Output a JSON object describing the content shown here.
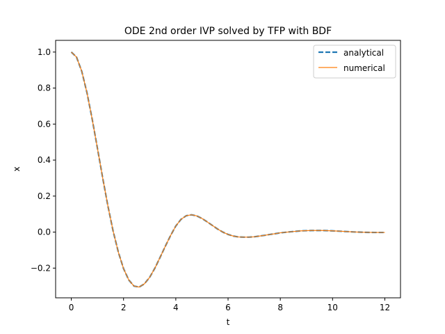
{
  "chart_data": {
    "type": "line",
    "title": "ODE 2nd order IVP solved by TFP with BDF",
    "xlabel": "t",
    "ylabel": "x",
    "xlim": [
      -0.6,
      12.6
    ],
    "ylim": [
      -0.365,
      1.065
    ],
    "xticks": [
      0,
      2,
      4,
      6,
      8,
      10,
      12
    ],
    "yticks": [
      -0.2,
      0.0,
      0.2,
      0.4,
      0.6,
      0.8,
      1.0
    ],
    "xtick_labels": [
      "0",
      "2",
      "4",
      "6",
      "8",
      "10",
      "12"
    ],
    "ytick_labels": [
      "−0.2",
      "0.0",
      "0.2",
      "0.4",
      "0.6",
      "0.8",
      "1.0"
    ],
    "grid": false,
    "legend_position": "top-right",
    "x": [
      0,
      0.2,
      0.4,
      0.6,
      0.8,
      1.0,
      1.2,
      1.4,
      1.6,
      1.8,
      2.0,
      2.2,
      2.4,
      2.6,
      2.8,
      3.0,
      3.2,
      3.4,
      3.6,
      3.8,
      4.0,
      4.2,
      4.4,
      4.6,
      4.8,
      5.0,
      5.2,
      5.4,
      5.6,
      5.8,
      6.0,
      6.2,
      6.4,
      6.6,
      6.8,
      7.0,
      7.2,
      7.4,
      7.6,
      7.8,
      8.0,
      8.4,
      8.8,
      9.2,
      9.6,
      10.0,
      10.4,
      10.8,
      11.2,
      11.6,
      12.0
    ],
    "series": [
      {
        "name": "analytical",
        "color": "#1f77b4",
        "style": "dashed",
        "values": [
          1.0,
          0.972,
          0.893,
          0.774,
          0.627,
          0.466,
          0.302,
          0.146,
          0.006,
          -0.111,
          -0.203,
          -0.266,
          -0.3,
          -0.305,
          -0.287,
          -0.251,
          -0.2,
          -0.14,
          -0.078,
          -0.019,
          0.034,
          0.071,
          0.091,
          0.096,
          0.09,
          0.076,
          0.057,
          0.037,
          0.017,
          0.0,
          -0.013,
          -0.022,
          -0.027,
          -0.028,
          -0.028,
          -0.026,
          -0.022,
          -0.018,
          -0.013,
          -0.009,
          -0.004,
          0.002,
          0.007,
          0.009,
          0.009,
          0.007,
          0.004,
          0.001,
          -0.001,
          -0.002,
          -0.002
        ]
      },
      {
        "name": "numerical",
        "color": "#ff7f0e",
        "style": "solid",
        "values": [
          1.0,
          0.972,
          0.893,
          0.774,
          0.627,
          0.466,
          0.302,
          0.146,
          0.006,
          -0.111,
          -0.203,
          -0.266,
          -0.3,
          -0.305,
          -0.287,
          -0.251,
          -0.2,
          -0.14,
          -0.078,
          -0.019,
          0.034,
          0.071,
          0.091,
          0.096,
          0.09,
          0.076,
          0.057,
          0.037,
          0.017,
          0.0,
          -0.013,
          -0.022,
          -0.027,
          -0.028,
          -0.028,
          -0.026,
          -0.022,
          -0.018,
          -0.013,
          -0.009,
          -0.004,
          0.002,
          0.007,
          0.009,
          0.009,
          0.007,
          0.004,
          0.001,
          -0.001,
          -0.002,
          -0.002
        ]
      }
    ]
  }
}
